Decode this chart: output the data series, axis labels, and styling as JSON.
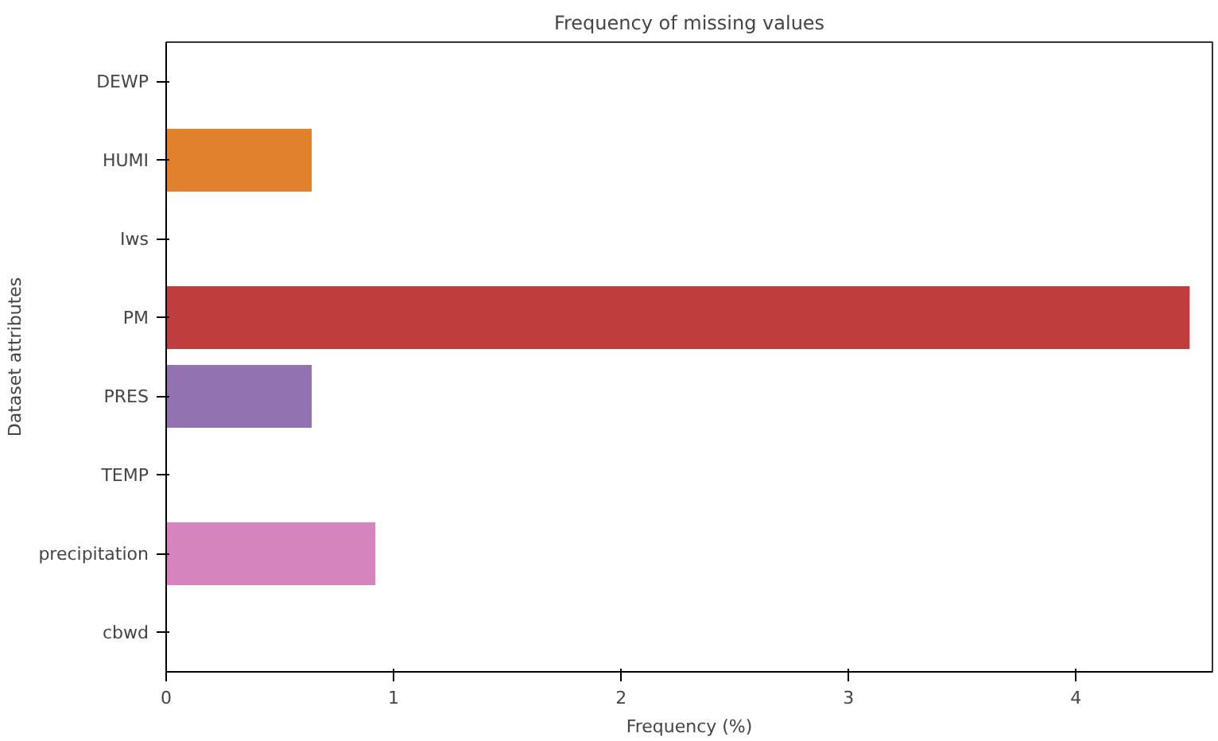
{
  "chart_data": {
    "type": "bar",
    "orientation": "horizontal",
    "title": "Frequency of missing values",
    "xlabel": "Frequency (%)",
    "ylabel": "Dataset attributes",
    "categories": [
      "DEWP",
      "HUMI",
      "Iws",
      "PM",
      "PRES",
      "TEMP",
      "precipitation",
      "cbwd"
    ],
    "values": [
      0,
      0.64,
      0,
      4.5,
      0.64,
      0,
      0.92,
      0
    ],
    "colors": [
      "#3274a1",
      "#e1812c",
      "#3a923a",
      "#c03d3e",
      "#9372b2",
      "#845b53",
      "#d684bd",
      "#7f7f7f"
    ],
    "xlim": [
      0,
      4.6
    ],
    "xticks": [
      0,
      1,
      2,
      3,
      4
    ],
    "grid": false
  }
}
